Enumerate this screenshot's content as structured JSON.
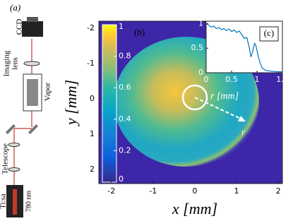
{
  "panel_a": {
    "label": "(a)",
    "ccd": "CCD",
    "imaging_lens": [
      "Imaging",
      "lens"
    ],
    "vapor": "Vapor",
    "telescope": "Telescope",
    "laser": "Ti:sa",
    "wavelength": "780 nm"
  },
  "panel_b": {
    "label": "(b)",
    "xlabel": "x [mm]",
    "ylabel": "y [mm]",
    "xlim": [
      -2.3,
      2.1
    ],
    "xticks": [
      -2,
      -1,
      0,
      1,
      2
    ],
    "ylim": [
      -2.2,
      2.4
    ],
    "yticks": [
      -2,
      -1,
      0,
      1,
      2
    ],
    "arrow_label": "r",
    "colorbar": {
      "lim": [
        0,
        1
      ],
      "ticks": [
        0,
        0.2,
        0.4,
        0.6,
        0.8,
        1
      ]
    }
  },
  "panel_c": {
    "label": "(c)",
    "xlabel": "r [mm]",
    "xlim": [
      0,
      1.5
    ],
    "xticks": [
      0,
      0.5,
      1,
      1.5
    ],
    "ylim": [
      0,
      1.05
    ],
    "yticks": [
      0,
      0.5,
      1
    ],
    "color": "#0072bd",
    "x": [
      0,
      0.05,
      0.1,
      0.15,
      0.2,
      0.25,
      0.3,
      0.35,
      0.4,
      0.45,
      0.5,
      0.55,
      0.6,
      0.65,
      0.7,
      0.75,
      0.8,
      0.85,
      0.88,
      0.92,
      0.95,
      0.98,
      1.02,
      1.06,
      1.1,
      1.15,
      1.2,
      1.3,
      1.4,
      1.5
    ],
    "values": [
      1,
      0.97,
      0.93,
      0.95,
      0.9,
      0.92,
      0.88,
      0.9,
      0.86,
      0.89,
      0.84,
      0.87,
      0.82,
      0.85,
      0.78,
      0.7,
      0.72,
      0.5,
      0.32,
      0.45,
      0.6,
      0.55,
      0.35,
      0.2,
      0.1,
      0.06,
      0.04,
      0.03,
      0.02,
      0.02
    ]
  }
}
